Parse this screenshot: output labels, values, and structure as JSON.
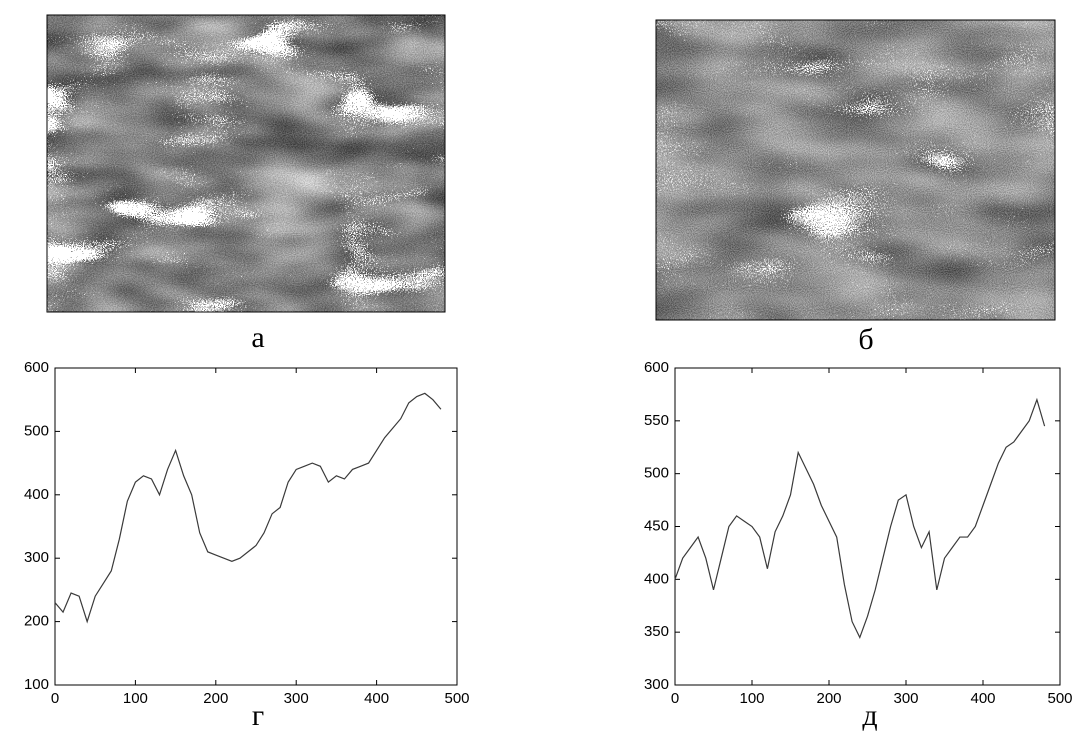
{
  "images": [
    {
      "label": "а"
    },
    {
      "label": "б"
    }
  ],
  "chart_data": [
    {
      "type": "line",
      "caption": "г",
      "x": [
        0,
        10,
        20,
        30,
        40,
        50,
        60,
        70,
        80,
        90,
        100,
        110,
        120,
        130,
        140,
        150,
        160,
        170,
        180,
        190,
        200,
        210,
        220,
        230,
        240,
        250,
        260,
        270,
        280,
        290,
        300,
        310,
        320,
        330,
        340,
        350,
        360,
        370,
        380,
        390,
        400,
        410,
        420,
        430,
        440,
        450,
        460,
        470,
        480
      ],
      "series": [
        {
          "color": "#3a3a3a",
          "values": [
            230,
            215,
            245,
            240,
            200,
            240,
            260,
            280,
            330,
            390,
            420,
            430,
            425,
            400,
            440,
            470,
            430,
            400,
            340,
            310,
            305,
            300,
            295,
            300,
            310,
            320,
            340,
            370,
            380,
            420,
            440,
            445,
            450,
            445,
            420,
            430,
            425,
            440,
            445,
            450,
            470,
            490,
            505,
            520,
            545,
            555,
            560,
            550,
            535
          ]
        }
      ],
      "xlim": [
        0,
        500
      ],
      "xticks": [
        0,
        100,
        200,
        300,
        400,
        500
      ],
      "ylim": [
        100,
        600
      ],
      "yticks": [
        100,
        200,
        300,
        400,
        500,
        600
      ]
    },
    {
      "type": "line",
      "caption": "д",
      "x": [
        0,
        10,
        20,
        30,
        40,
        50,
        60,
        70,
        80,
        90,
        100,
        110,
        120,
        130,
        140,
        150,
        160,
        170,
        180,
        190,
        200,
        210,
        220,
        230,
        240,
        250,
        260,
        270,
        280,
        290,
        300,
        310,
        320,
        330,
        340,
        350,
        360,
        370,
        380,
        390,
        400,
        410,
        420,
        430,
        440,
        450,
        460,
        470,
        480
      ],
      "series": [
        {
          "color": "#3a3a3a",
          "values": [
            400,
            420,
            430,
            440,
            420,
            390,
            420,
            450,
            460,
            455,
            450,
            440,
            410,
            445,
            460,
            480,
            520,
            505,
            490,
            470,
            455,
            440,
            395,
            360,
            345,
            365,
            390,
            420,
            450,
            475,
            480,
            450,
            430,
            445,
            390,
            420,
            430,
            440,
            440,
            450,
            470,
            490,
            510,
            525,
            530,
            540,
            550,
            570,
            545
          ]
        }
      ],
      "xlim": [
        0,
        500
      ],
      "xticks": [
        0,
        100,
        200,
        300,
        400,
        500
      ],
      "ylim": [
        300,
        600
      ],
      "yticks": [
        300,
        350,
        400,
        450,
        500,
        550,
        600
      ]
    }
  ]
}
